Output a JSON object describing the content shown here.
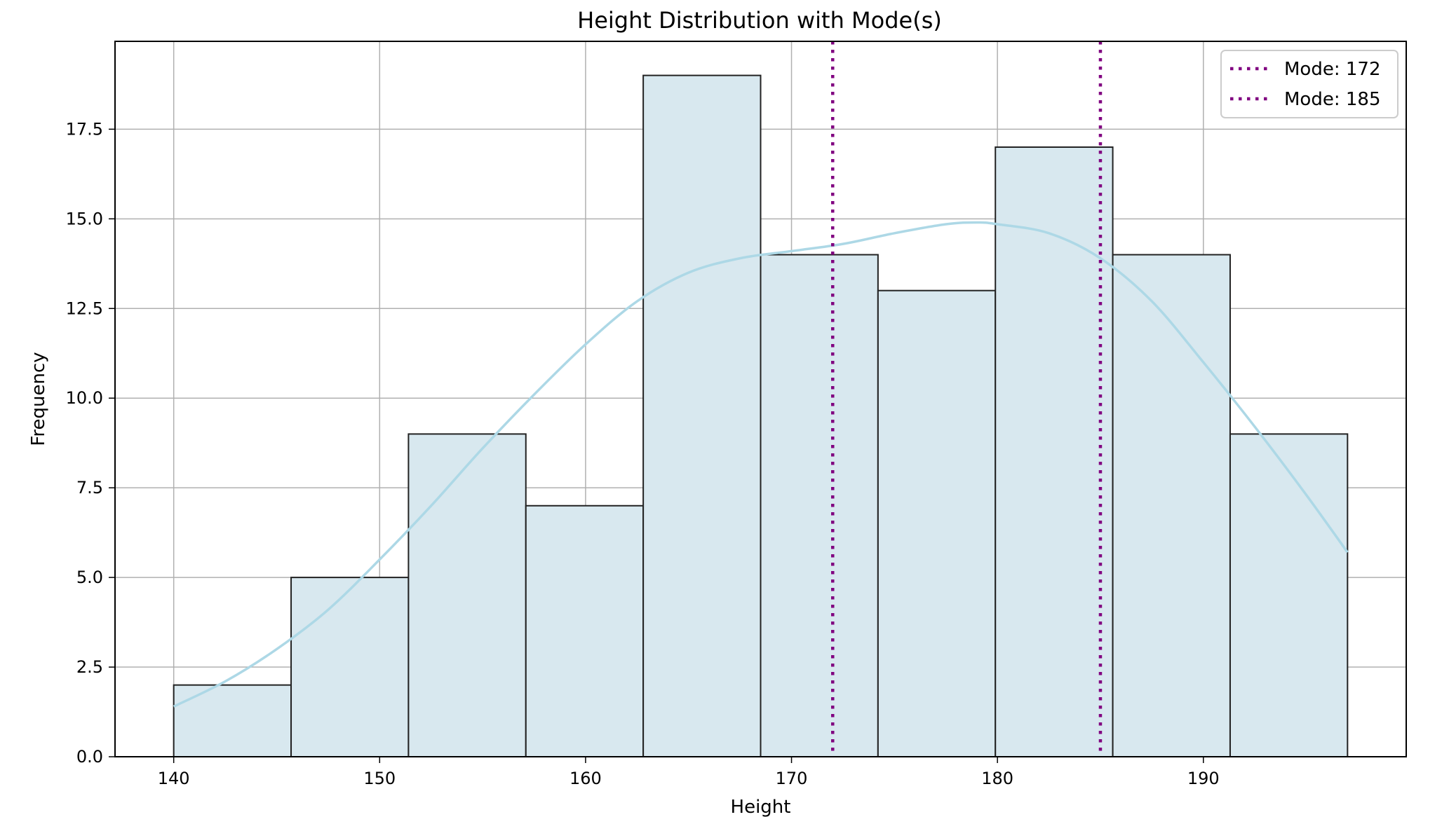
{
  "chart_data": {
    "type": "bar",
    "title": "Height Distribution with Mode(s)",
    "xlabel": "Height",
    "ylabel": "Frequency",
    "xlim": [
      137.15,
      199.85
    ],
    "ylim": [
      0,
      19.95
    ],
    "x_ticks": [
      140,
      150,
      160,
      170,
      180,
      190
    ],
    "x_tick_labels": [
      "140",
      "150",
      "160",
      "170",
      "180",
      "190"
    ],
    "y_ticks": [
      0,
      2.5,
      5,
      7.5,
      10,
      12.5,
      15,
      17.5
    ],
    "y_tick_labels": [
      "0.0",
      "2.5",
      "5.0",
      "7.5",
      "10.0",
      "12.5",
      "15.0",
      "17.5"
    ],
    "grid": true,
    "bins": [
      {
        "x0": 140.0,
        "x1": 145.7,
        "count": 2
      },
      {
        "x0": 145.7,
        "x1": 151.4,
        "count": 5
      },
      {
        "x0": 151.4,
        "x1": 157.1,
        "count": 9
      },
      {
        "x0": 157.1,
        "x1": 162.8,
        "count": 7
      },
      {
        "x0": 162.8,
        "x1": 168.5,
        "count": 19
      },
      {
        "x0": 168.5,
        "x1": 174.2,
        "count": 14
      },
      {
        "x0": 174.2,
        "x1": 179.9,
        "count": 13
      },
      {
        "x0": 179.9,
        "x1": 185.6,
        "count": 17
      },
      {
        "x0": 185.6,
        "x1": 191.3,
        "count": 14
      },
      {
        "x0": 191.3,
        "x1": 197.0,
        "count": 9
      }
    ],
    "kde": {
      "x": [
        140,
        142.5,
        145,
        147.5,
        150,
        152.5,
        155,
        157.5,
        160,
        162.5,
        165,
        167.5,
        170,
        172.5,
        175,
        177.5,
        179,
        180,
        182.5,
        185,
        187.5,
        190,
        192.5,
        195,
        197
      ],
      "y": [
        1.4,
        2.1,
        3.0,
        4.1,
        5.5,
        7.0,
        8.6,
        10.1,
        11.5,
        12.7,
        13.5,
        13.9,
        14.1,
        14.3,
        14.6,
        14.85,
        14.9,
        14.85,
        14.6,
        13.9,
        12.7,
        11.0,
        9.2,
        7.3,
        5.7
      ]
    },
    "modes": [
      {
        "label": "Mode: 172",
        "value": 172
      },
      {
        "label": "Mode: 185",
        "value": 185
      }
    ],
    "legend_position": "top-right",
    "colors": {
      "bar_fill": "#d8e8ef",
      "bar_edge": "#222222",
      "kde_line": "#add8e6",
      "mode_line": "#800080",
      "grid": "#b0b0b0"
    }
  }
}
